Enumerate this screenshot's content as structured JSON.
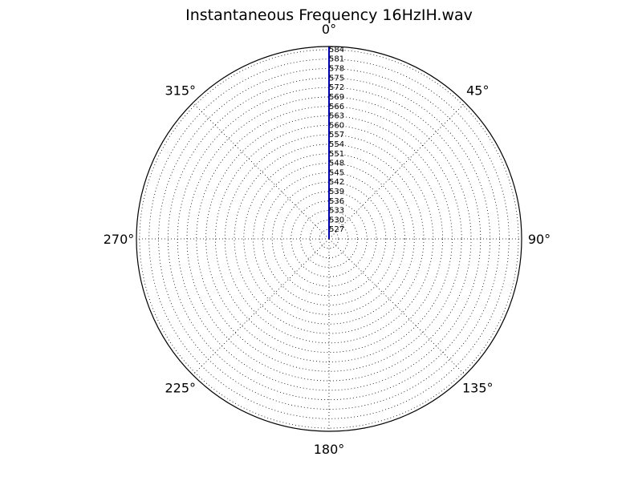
{
  "chart_data": {
    "type": "polar-line",
    "title": "Instantaneous Frequency  16HzIH.wav",
    "angle_labels": [
      "0°",
      "45°",
      "90°",
      "135°",
      "180°",
      "225°",
      "270°",
      "315°"
    ],
    "angle_values_deg": [
      0,
      45,
      90,
      135,
      180,
      225,
      270,
      315
    ],
    "theta_zero": "top",
    "theta_direction": "clockwise",
    "radial_ticks": [
      "527",
      "530",
      "533",
      "536",
      "539",
      "542",
      "545",
      "548",
      "551",
      "554",
      "557",
      "560",
      "563",
      "566",
      "569",
      "572",
      "575",
      "578",
      "581",
      "584"
    ],
    "rlim": [
      524,
      585
    ],
    "grid": true,
    "series": [
      {
        "color": "#0000aa",
        "theta_deg": [
          0,
          0
        ],
        "r": [
          524,
          585
        ]
      }
    ]
  }
}
